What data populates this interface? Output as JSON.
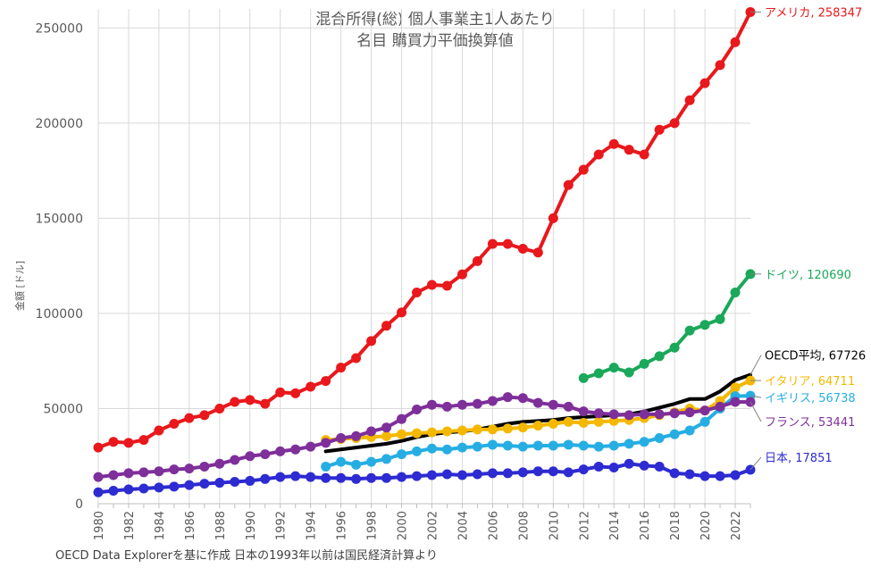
{
  "chart_data": {
    "type": "line",
    "title": [
      "混合所得(総) 個人事業主1人あたり",
      "名目 購買力平価換算値"
    ],
    "xlabel": "",
    "ylabel": "金額 [ドル]",
    "source": "OECD Data Explorerを基に作成 日本の1993年以前は国民経済計算より",
    "ylim": [
      0,
      260000
    ],
    "yticks": [
      0,
      50000,
      100000,
      150000,
      200000,
      250000
    ],
    "ytick_labels": [
      "0",
      "50000",
      "100000",
      "150000",
      "200000",
      "250000"
    ],
    "xlim": [
      1980,
      2023
    ],
    "xticks": [
      1980,
      1982,
      1984,
      1986,
      1988,
      1990,
      1992,
      1994,
      1996,
      1998,
      2000,
      2002,
      2004,
      2006,
      2008,
      2010,
      2012,
      2014,
      2016,
      2018,
      2020,
      2022
    ],
    "xtick_labels": [
      "1980",
      "1982",
      "1984",
      "1986",
      "1988",
      "1990",
      "1992",
      "1994",
      "1996",
      "1998",
      "2000",
      "2002",
      "2004",
      "2006",
      "2008",
      "2010",
      "2012",
      "2014",
      "2016",
      "2018",
      "2020",
      "2022"
    ],
    "grid": true,
    "series": [
      {
        "name": "OECD平均",
        "end_label": "OECD平均, 67726",
        "color": "#000000",
        "markers": false,
        "x_start": 1995,
        "values": [
          27500,
          28500,
          29500,
          30500,
          31500,
          33000,
          35000,
          36500,
          37500,
          38000,
          39000,
          40500,
          42000,
          43000,
          43500,
          44000,
          45000,
          45500,
          46000,
          46500,
          47000,
          48500,
          50500,
          52500,
          55000,
          55000,
          59000,
          65000,
          67726
        ]
      },
      {
        "name": "イタリア",
        "end_label": "イタリア, 64711",
        "color": "#f5b800",
        "markers": true,
        "x_start": 1995,
        "values": [
          33500,
          34000,
          34500,
          35000,
          35500,
          36500,
          37000,
          37500,
          38000,
          38500,
          39000,
          39000,
          39500,
          40000,
          41000,
          42000,
          43000,
          42500,
          43000,
          43500,
          44000,
          45000,
          46500,
          48000,
          50000,
          49000,
          54000,
          61000,
          64711
        ]
      },
      {
        "name": "イギリス",
        "end_label": "イギリス, 56738",
        "color": "#26aee3",
        "markers": true,
        "x_start": 1995,
        "values": [
          19500,
          22000,
          20500,
          22000,
          23500,
          26000,
          27500,
          29000,
          28500,
          29500,
          30000,
          31000,
          30500,
          30000,
          30500,
          30500,
          31000,
          30500,
          30000,
          30500,
          31500,
          32500,
          34500,
          36500,
          38500,
          43000,
          50000,
          56500,
          56738
        ]
      },
      {
        "name": "ドイツ",
        "end_label": "ドイツ, 120690",
        "color": "#1aa85a",
        "markers": true,
        "x_start": 2012,
        "values": [
          66000,
          68500,
          71500,
          69000,
          73500,
          77500,
          82000,
          91000,
          94000,
          97000,
          111000,
          120690
        ]
      },
      {
        "name": "アメリカ",
        "end_label": "アメリカ, 258347",
        "color": "#e8181c",
        "markers": true,
        "x_start": 1980,
        "values": [
          29500,
          32500,
          32000,
          33500,
          38500,
          42000,
          45000,
          46500,
          50000,
          53500,
          54500,
          52500,
          58500,
          58000,
          61500,
          64500,
          71500,
          76500,
          85500,
          93500,
          100500,
          111000,
          115000,
          114500,
          120500,
          127500,
          136500,
          136500,
          134000,
          132000,
          150000,
          167500,
          175500,
          183500,
          189000,
          186000,
          183500,
          196500,
          200000,
          212000,
          221000,
          230500,
          242500,
          258347
        ]
      },
      {
        "name": "フランス",
        "end_label": "フランス, 53441",
        "color": "#7e2f9a",
        "markers": true,
        "x_start": 1980,
        "values": [
          14000,
          15000,
          16000,
          16500,
          17000,
          18000,
          18500,
          19500,
          21000,
          23000,
          25000,
          26000,
          27500,
          28500,
          30000,
          32000,
          34500,
          35500,
          38000,
          40000,
          44500,
          49500,
          52000,
          51000,
          52000,
          52500,
          54000,
          56000,
          55500,
          53000,
          52000,
          51000,
          48500,
          47500,
          47000,
          46500,
          47000,
          47000,
          47500,
          48000,
          49000,
          51000,
          53500,
          53441
        ]
      },
      {
        "name": "日本",
        "end_label": "日本, 17851",
        "color": "#2d2bd1",
        "markers": true,
        "x_start": 1980,
        "values": [
          6000,
          6800,
          7500,
          8000,
          8500,
          9000,
          9800,
          10500,
          11000,
          11500,
          12000,
          13000,
          14000,
          14500,
          14000,
          13500,
          13500,
          13000,
          13500,
          13500,
          14000,
          14500,
          15000,
          15500,
          15000,
          15500,
          16000,
          16000,
          16500,
          17000,
          17000,
          16500,
          18000,
          19500,
          19000,
          21000,
          20000,
          19500,
          16000,
          15500,
          14500,
          14500,
          15000,
          17851
        ]
      }
    ]
  }
}
